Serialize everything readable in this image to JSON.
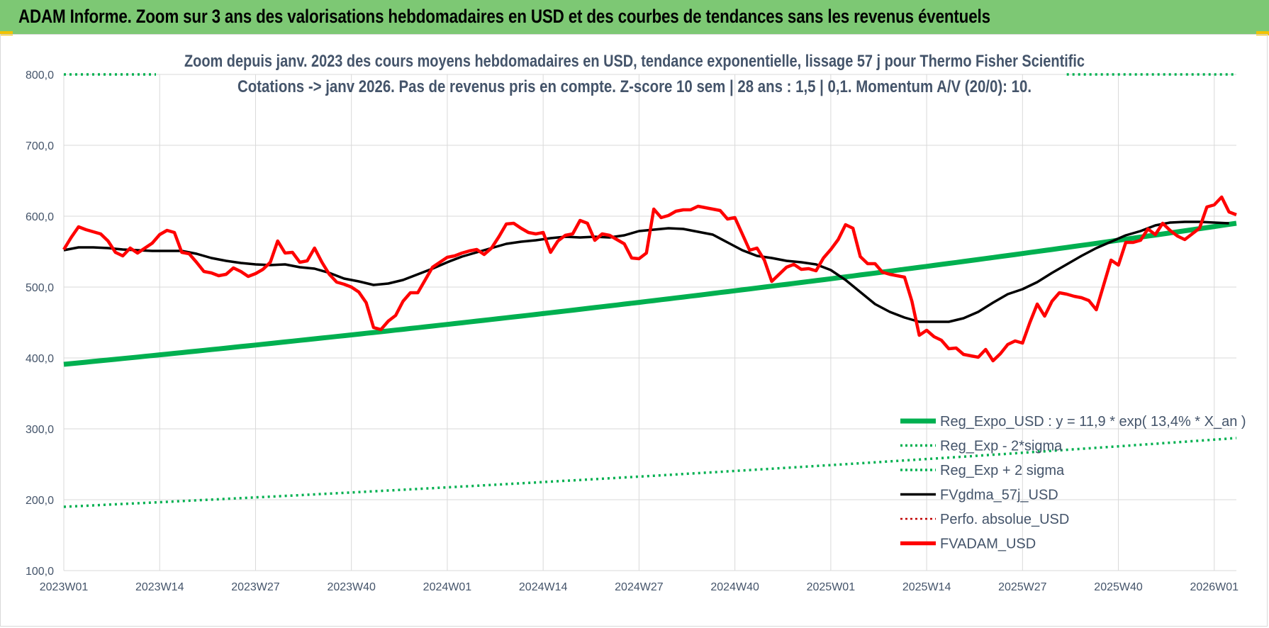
{
  "banner": {
    "title": "ADAM Informe. Zoom sur 3 ans des valorisations hebdomadaires en USD et des courbes de tendances sans les revenus éventuels"
  },
  "colors": {
    "banner_bg": "#7dc874",
    "trend": "#00b050",
    "smooth": "#000000",
    "price": "#ff0000",
    "grid": "#d9d9d9",
    "text": "#44546a"
  },
  "chart_data": {
    "type": "line",
    "title_line1": "Zoom depuis janv. 2023 des cours moyens hebdomadaires en USD, tendance exponentielle, lissage 57 j pour Thermo Fisher Scientific",
    "title_line2": "Cotations -> janv 2026. Pas de revenus pris en compte. Z-score 10 sem | 28 ans : 1,5 | 0,1. Momentum A/V (20/0): 10.",
    "ylim": [
      100,
      800
    ],
    "y_ticks": [
      "100,0",
      "200,0",
      "300,0",
      "400,0",
      "500,0",
      "600,0",
      "700,0",
      "800,0"
    ],
    "x_ticks": [
      "2023W01",
      "2023W14",
      "2023W27",
      "2023W40",
      "2024W01",
      "2024W14",
      "2024W27",
      "2024W40",
      "2025W01",
      "2025W14",
      "2025W27",
      "2025W40",
      "2026W01"
    ],
    "x_range_weeks": [
      0,
      159
    ],
    "grid": true,
    "legend_position": "bottom-right",
    "legend": [
      {
        "label": "Reg_Expo_USD : y = 11,9 * exp( 13,4% *  X_an )",
        "style": "solid-thick",
        "color": "#00b050"
      },
      {
        "label": "Reg_Exp - 2*sigma",
        "style": "dotted",
        "color": "#00b050"
      },
      {
        "label": "Reg_Exp + 2 sigma",
        "style": "dotted",
        "color": "#00b050"
      },
      {
        "label": "FVgdma_57j_USD",
        "style": "solid",
        "color": "#000000"
      },
      {
        "label": "Perfo. absolue_USD",
        "style": "dotted",
        "color": "#c00000"
      },
      {
        "label": "FVADAM_USD",
        "style": "solid-thick",
        "color": "#ff0000"
      }
    ],
    "series": [
      {
        "name": "Reg_Expo_USD : y = 11,9 * exp( 13,4% *  X_an )",
        "x": [
          0,
          159
        ],
        "values": [
          391,
          590
        ],
        "curve": "exponential"
      },
      {
        "name": "Reg_Exp - 2*sigma",
        "x": [
          0,
          159
        ],
        "values": [
          190,
          287
        ],
        "curve": "exponential"
      },
      {
        "name": "Reg_Exp + 2 sigma",
        "x": [
          0,
          12.5,
          136,
          159
        ],
        "values": [
          800,
          800,
          800,
          800
        ],
        "segments": [
          [
            0,
            12.5
          ],
          [
            136,
            159
          ]
        ]
      },
      {
        "name": "FVgdma_57j_USD",
        "x": [
          0,
          2,
          4,
          6,
          8,
          10,
          12,
          14,
          16,
          18,
          20,
          22,
          24,
          26,
          28,
          30,
          32,
          34,
          36,
          38,
          40,
          42,
          44,
          46,
          48,
          50,
          52,
          54,
          56,
          58,
          60,
          62,
          64,
          66,
          68,
          70,
          72,
          74,
          76,
          78,
          80,
          82,
          84,
          86,
          88,
          90,
          92,
          94,
          96,
          98,
          100,
          102,
          104,
          106,
          108,
          110,
          112,
          114,
          116,
          118,
          120,
          122,
          124,
          126,
          128,
          130,
          132,
          134,
          136,
          138,
          140,
          142,
          144,
          146,
          148,
          150,
          152,
          154,
          156,
          158
        ],
        "values": [
          552,
          556,
          556,
          555,
          553,
          552,
          551,
          551,
          551,
          547,
          541,
          537,
          534,
          532,
          531,
          532,
          528,
          526,
          520,
          512,
          508,
          503,
          505,
          510,
          518,
          526,
          535,
          543,
          549,
          555,
          561,
          564,
          566,
          569,
          571,
          570,
          571,
          570,
          573,
          579,
          581,
          583,
          582,
          578,
          574,
          563,
          552,
          544,
          541,
          537,
          535,
          532,
          524,
          510,
          493,
          476,
          465,
          457,
          451,
          451,
          451,
          456,
          465,
          478,
          490,
          497,
          507,
          520,
          532,
          544,
          555,
          564,
          573,
          579,
          587,
          591,
          592,
          592,
          591,
          590
        ]
      },
      {
        "name": "FVADAM_USD",
        "x": [
          0,
          1,
          2,
          3,
          4,
          5,
          6,
          7,
          8,
          9,
          10,
          11,
          12,
          13,
          14,
          15,
          16,
          17,
          18,
          19,
          20,
          21,
          22,
          23,
          24,
          25,
          26,
          27,
          28,
          29,
          30,
          31,
          32,
          33,
          34,
          35,
          36,
          37,
          38,
          39,
          40,
          41,
          42,
          43,
          44,
          45,
          46,
          47,
          48,
          49,
          50,
          51,
          52,
          53,
          54,
          55,
          56,
          57,
          58,
          59,
          60,
          61,
          62,
          63,
          64,
          65,
          66,
          67,
          68,
          69,
          70,
          71,
          72,
          73,
          74,
          75,
          76,
          77,
          78,
          79,
          80,
          81,
          82,
          83,
          84,
          85,
          86,
          87,
          88,
          89,
          90,
          91,
          92,
          93,
          94,
          95,
          96,
          97,
          98,
          99,
          100,
          101,
          102,
          103,
          104,
          105,
          106,
          107,
          108,
          109,
          110,
          111,
          112,
          113,
          114,
          115,
          116,
          117,
          118,
          119,
          120,
          121,
          122,
          123,
          124,
          125,
          126,
          127,
          128,
          129,
          130,
          131,
          132,
          133,
          134,
          135,
          136,
          137,
          138,
          139,
          140,
          141,
          142,
          143,
          144,
          145,
          146,
          147,
          148,
          149,
          150,
          151,
          152,
          153,
          154,
          155,
          156,
          157,
          158,
          159
        ],
        "values": [
          553,
          570,
          585,
          581,
          578,
          575,
          565,
          549,
          544,
          555,
          548,
          555,
          562,
          574,
          580,
          577,
          549,
          547,
          535,
          522,
          520,
          516,
          518,
          527,
          522,
          515,
          519,
          525,
          535,
          565,
          548,
          549,
          535,
          537,
          555,
          535,
          518,
          507,
          504,
          500,
          493,
          478,
          443,
          440,
          452,
          460,
          480,
          492,
          492,
          510,
          528,
          535,
          542,
          544,
          548,
          551,
          553,
          546,
          555,
          571,
          589,
          590,
          583,
          577,
          575,
          577,
          549,
          565,
          573,
          575,
          594,
          590,
          566,
          575,
          573,
          567,
          561,
          541,
          540,
          548,
          610,
          598,
          601,
          607,
          609,
          609,
          614,
          612,
          610,
          608,
          596,
          598,
          575,
          552,
          555,
          538,
          508,
          518,
          528,
          532,
          525,
          526,
          523,
          541,
          553,
          567,
          588,
          583,
          543,
          533,
          533,
          521,
          518,
          516,
          514,
          480,
          432,
          439,
          430,
          425,
          413,
          414,
          405,
          403,
          401,
          412,
          396,
          406,
          419,
          424,
          421,
          450,
          476,
          459,
          480,
          492,
          490,
          487,
          485,
          481,
          468,
          503,
          538,
          531,
          563,
          563,
          566,
          582,
          574,
          590,
          580,
          572,
          567,
          575,
          583,
          613,
          616,
          627,
          606,
          602
        ]
      }
    ]
  }
}
